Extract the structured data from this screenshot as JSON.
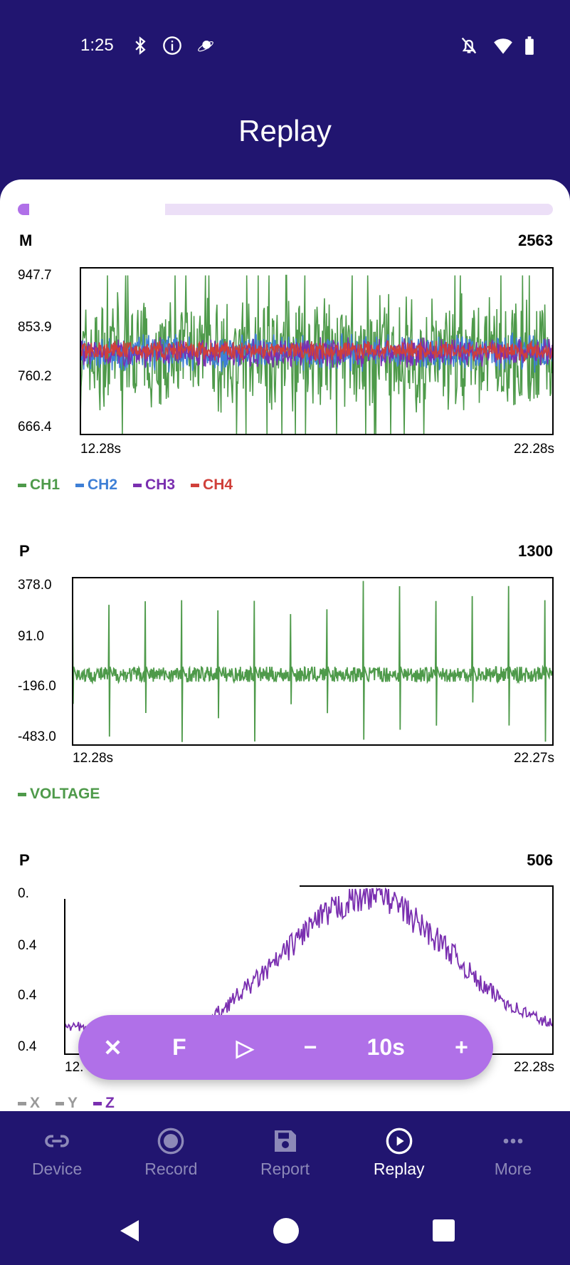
{
  "status_bar": {
    "time": "1:25",
    "icons": [
      "bluetooth-icon",
      "info-icon",
      "saturn-icon",
      "bell-off-icon",
      "wifi-icon",
      "battery-icon"
    ]
  },
  "header": {
    "title": "Replay"
  },
  "progress": {
    "value": 0.02,
    "color": "#b070e8",
    "track": "#ecdff7"
  },
  "charts": [
    {
      "title": "M",
      "count": "2563",
      "y_labels": [
        "947.7",
        "853.9",
        "760.2",
        "666.4"
      ],
      "x_labels": [
        "12.28s",
        "22.28s"
      ],
      "legend": [
        {
          "label": "CH1",
          "color": "#4e9a4a"
        },
        {
          "label": "CH2",
          "color": "#3e7fd6"
        },
        {
          "label": "CH3",
          "color": "#7a2fb0"
        },
        {
          "label": "CH4",
          "color": "#d0403a"
        }
      ]
    },
    {
      "title": "P",
      "count": "1300",
      "y_labels": [
        "378.0",
        "91.0",
        "-196.0",
        "-483.0"
      ],
      "x_labels": [
        "12.28s",
        "22.27s"
      ],
      "legend": [
        {
          "label": "VOLTAGE",
          "color": "#4e9a4a"
        }
      ]
    },
    {
      "title": "P",
      "count": "506",
      "y_labels": [
        "0.",
        "0.4",
        "0.4",
        "0.4"
      ],
      "x_labels": [
        "12.",
        "22.28s"
      ],
      "legend": [
        {
          "label": "X",
          "color": "#999999"
        },
        {
          "label": "Y",
          "color": "#999999"
        },
        {
          "label": "Z",
          "color": "#7a2fb0"
        }
      ]
    }
  ],
  "chart_data": [
    {
      "type": "line",
      "x_range": [
        12.28,
        22.28
      ],
      "ylim": [
        666.4,
        947.7
      ],
      "series": [
        {
          "name": "CH1",
          "center": 800,
          "spread": [
            700,
            900
          ]
        },
        {
          "name": "CH2",
          "center": 805,
          "spread": [
            775,
            840
          ]
        },
        {
          "name": "CH3",
          "center": 805,
          "spread": [
            780,
            830
          ]
        },
        {
          "name": "CH4",
          "center": 808,
          "spread": [
            790,
            825
          ]
        }
      ]
    },
    {
      "type": "line",
      "x_range": [
        12.28,
        22.27
      ],
      "ylim": [
        -483,
        378
      ],
      "series": [
        {
          "name": "VOLTAGE",
          "baseline": -120,
          "spike_max": 378,
          "spike_min": -483
        }
      ]
    },
    {
      "type": "line",
      "x_range": [
        12.28,
        22.28
      ],
      "series": [
        {
          "name": "Z",
          "profile": [
            0.1,
            0.05,
            0.05,
            0.08,
            0.1,
            0.3,
            0.5,
            0.75,
            0.9,
            1.0,
            0.8,
            0.6,
            0.35,
            0.2,
            0.1
          ]
        }
      ]
    }
  ],
  "controls": {
    "close": "✕",
    "follow": "F",
    "play": "▷",
    "minus": "−",
    "window": "10s",
    "plus": "+"
  },
  "nav": [
    {
      "label": "Device"
    },
    {
      "label": "Record"
    },
    {
      "label": "Report"
    },
    {
      "label": "Replay"
    },
    {
      "label": "More"
    }
  ],
  "colors": {
    "header": "#211570",
    "accent": "#b070e8"
  }
}
